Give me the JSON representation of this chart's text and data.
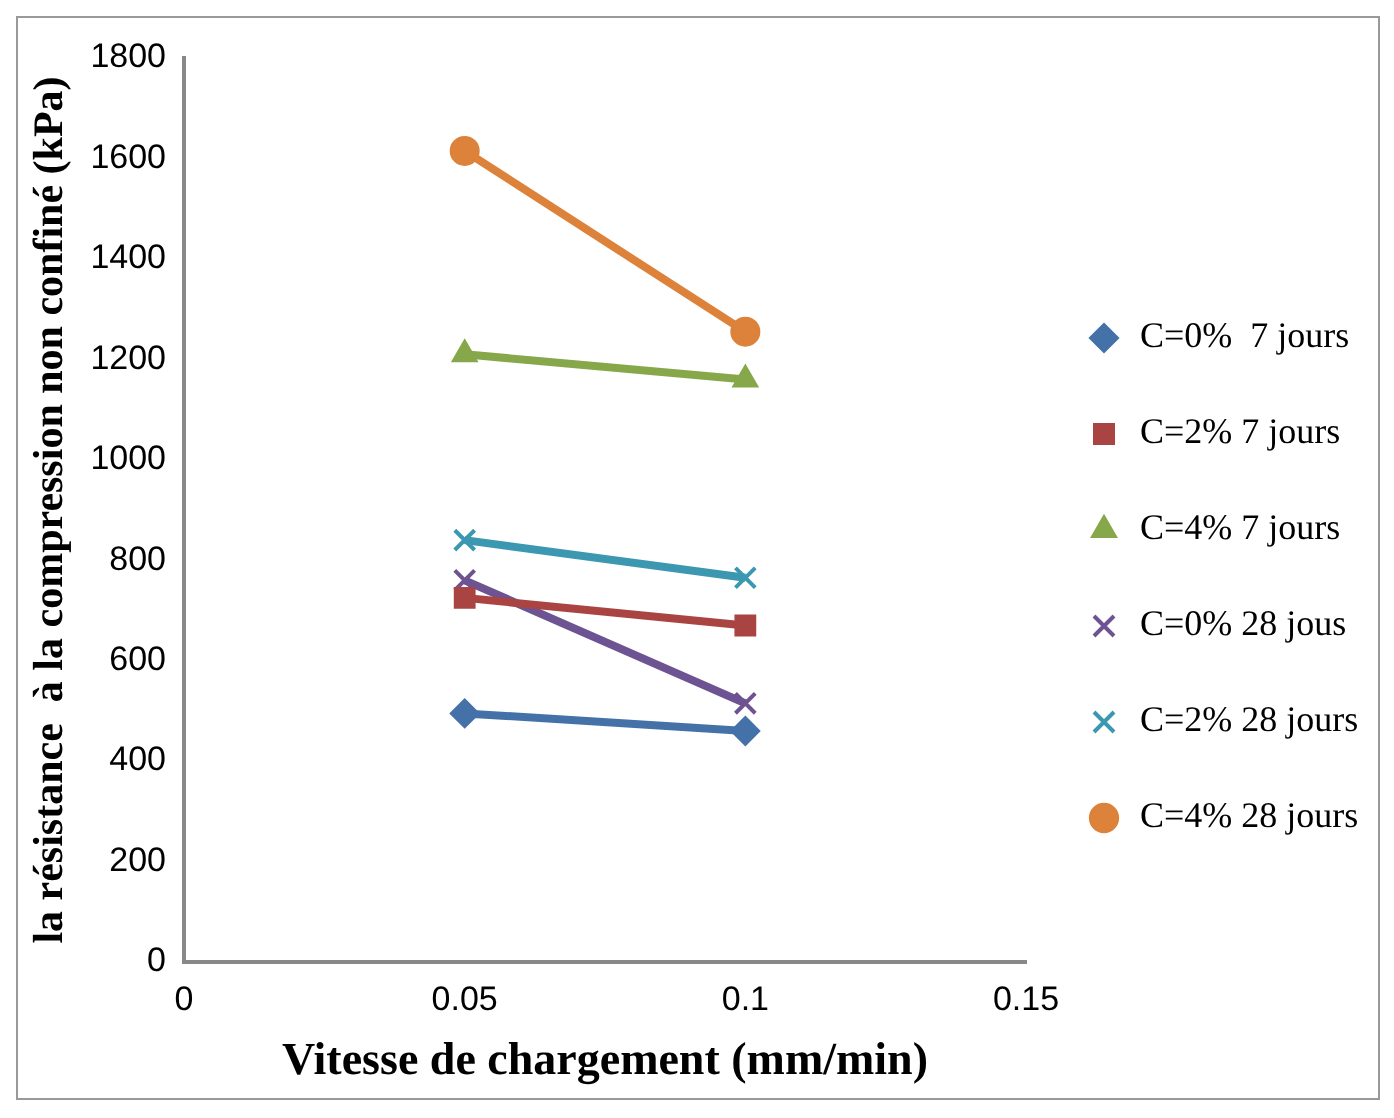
{
  "chart_data": {
    "type": "line",
    "xlabel": "Vitesse de chargement (mm/min)",
    "ylabel": "la résistance  à la compression non confiné (kPa)",
    "x": [
      0.05,
      0.1
    ],
    "xlim": [
      0,
      0.15
    ],
    "xticks": [
      0,
      0.05,
      0.1,
      0.15
    ],
    "ylim": [
      0,
      1800
    ],
    "yticks": [
      0,
      200,
      400,
      600,
      800,
      1000,
      1200,
      1400,
      1600,
      1800
    ],
    "grid": false,
    "legend": "right",
    "line_style": "solid",
    "series": [
      {
        "name": "C=0%  7 jours",
        "color": "#4472a8",
        "marker": "diamond",
        "values": [
          495,
          460
        ]
      },
      {
        "name": "C=2% 7 jours",
        "color": "#a94442",
        "marker": "square",
        "values": [
          725,
          670
        ]
      },
      {
        "name": "C=4% 7 jours",
        "color": "#86a84a",
        "marker": "triangle",
        "values": [
          1210,
          1160
        ]
      },
      {
        "name": "C=0% 28 jous",
        "color": "#6d5391",
        "marker": "cross",
        "values": [
          760,
          515
        ]
      },
      {
        "name": "C=2% 28 jours",
        "color": "#3c98b0",
        "marker": "cross",
        "values": [
          840,
          765
        ]
      },
      {
        "name": "C=4% 28 jours",
        "color": "#dc823a",
        "marker": "circle",
        "values": [
          1615,
          1255
        ]
      }
    ]
  }
}
